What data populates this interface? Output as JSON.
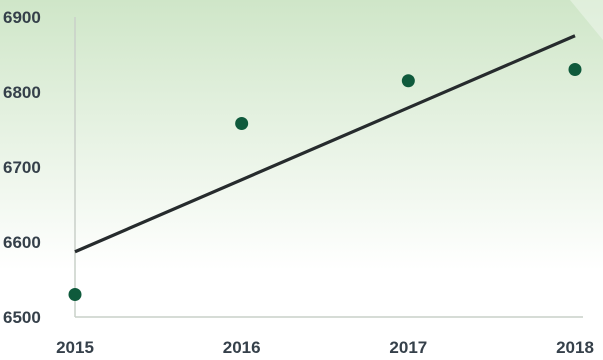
{
  "chart_data": {
    "type": "scatter",
    "x": [
      2015,
      2016,
      2017,
      2018
    ],
    "y": [
      6530,
      6758,
      6815,
      6830
    ],
    "trendline": {
      "type": "linear",
      "start": [
        2015,
        6587
      ],
      "end": [
        2018,
        6875
      ]
    },
    "xlim": [
      2015,
      2018
    ],
    "ylim": [
      6500,
      6900
    ],
    "xticks": [
      "2015",
      "2016",
      "2017",
      "2018"
    ],
    "yticks": [
      "6500",
      "6600",
      "6700",
      "6800",
      "6900"
    ],
    "grid": false,
    "colors": {
      "marker": "#0f5a3c",
      "trendline": "#262b2d",
      "axis": "#c9d0c9",
      "background_top": "#cfe6c8",
      "background_bottom": "#ffffff"
    }
  }
}
